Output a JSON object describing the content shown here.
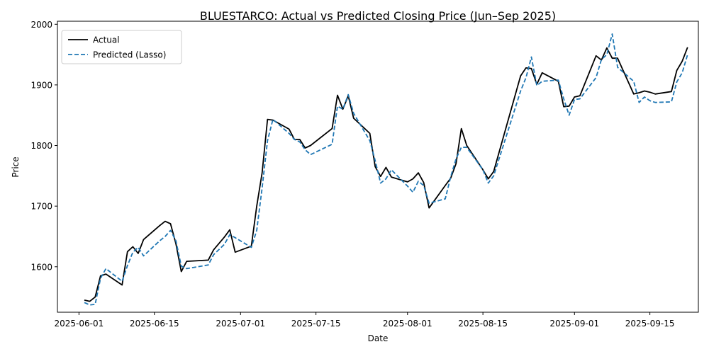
{
  "chart_data": {
    "type": "line",
    "title": "BLUESTARCO: Actual vs Predicted Closing Price (Jun–Sep 2025)",
    "xlabel": "Date",
    "ylabel": "Price",
    "xlim": [
      "2025-05-28",
      "2025-09-24"
    ],
    "ylim": [
      1525,
      2005
    ],
    "x_ticks": [
      "2025-06-01",
      "2025-06-15",
      "2025-07-01",
      "2025-07-15",
      "2025-08-01",
      "2025-08-15",
      "2025-09-01",
      "2025-09-15"
    ],
    "y_ticks": [
      1600,
      1700,
      1800,
      1900,
      2000
    ],
    "grid": false,
    "legend_position": "top-left",
    "series": [
      {
        "name": "Actual",
        "color": "#000000",
        "style": "solid",
        "points": [
          [
            "2025-06-02",
            1545
          ],
          [
            "2025-06-03",
            1543
          ],
          [
            "2025-06-04",
            1550
          ],
          [
            "2025-06-05",
            1585
          ],
          [
            "2025-06-06",
            1588
          ],
          [
            "2025-06-09",
            1570
          ],
          [
            "2025-06-10",
            1625
          ],
          [
            "2025-06-11",
            1633
          ],
          [
            "2025-06-12",
            1622
          ],
          [
            "2025-06-13",
            1645
          ],
          [
            "2025-06-16",
            1668
          ],
          [
            "2025-06-17",
            1675
          ],
          [
            "2025-06-18",
            1671
          ],
          [
            "2025-06-19",
            1638
          ],
          [
            "2025-06-20",
            1592
          ],
          [
            "2025-06-21",
            1609
          ],
          [
            "2025-06-25",
            1611
          ],
          [
            "2025-06-26",
            1628
          ],
          [
            "2025-06-28",
            1649
          ],
          [
            "2025-06-29",
            1661
          ],
          [
            "2025-06-30",
            1624
          ],
          [
            "2025-07-03",
            1634
          ],
          [
            "2025-07-04",
            1700
          ],
          [
            "2025-07-05",
            1755
          ],
          [
            "2025-07-06",
            1843
          ],
          [
            "2025-07-07",
            1842
          ],
          [
            "2025-07-10",
            1827
          ],
          [
            "2025-07-11",
            1810
          ],
          [
            "2025-07-12",
            1810
          ],
          [
            "2025-07-13",
            1796
          ],
          [
            "2025-07-14",
            1800
          ],
          [
            "2025-07-18",
            1828
          ],
          [
            "2025-07-19",
            1883
          ],
          [
            "2025-07-20",
            1860
          ],
          [
            "2025-07-21",
            1882
          ],
          [
            "2025-07-22",
            1845
          ],
          [
            "2025-07-25",
            1820
          ],
          [
            "2025-07-26",
            1765
          ],
          [
            "2025-07-27",
            1749
          ],
          [
            "2025-07-28",
            1764
          ],
          [
            "2025-07-29",
            1748
          ],
          [
            "2025-08-01",
            1740
          ],
          [
            "2025-08-02",
            1745
          ],
          [
            "2025-08-03",
            1755
          ],
          [
            "2025-08-04",
            1739
          ],
          [
            "2025-08-05",
            1697
          ],
          [
            "2025-08-08",
            1734
          ],
          [
            "2025-08-09",
            1746
          ],
          [
            "2025-08-10",
            1770
          ],
          [
            "2025-08-11",
            1828
          ],
          [
            "2025-08-12",
            1800
          ],
          [
            "2025-08-15",
            1760
          ],
          [
            "2025-08-16",
            1745
          ],
          [
            "2025-08-17",
            1757
          ],
          [
            "2025-08-22",
            1915
          ],
          [
            "2025-08-23",
            1928
          ],
          [
            "2025-08-24",
            1927
          ],
          [
            "2025-08-25",
            1901
          ],
          [
            "2025-08-26",
            1920
          ],
          [
            "2025-08-29",
            1906
          ],
          [
            "2025-08-30",
            1864
          ],
          [
            "2025-08-31",
            1865
          ],
          [
            "2025-09-01",
            1880
          ],
          [
            "2025-09-02",
            1882
          ],
          [
            "2025-09-05",
            1948
          ],
          [
            "2025-09-06",
            1941
          ],
          [
            "2025-09-07",
            1961
          ],
          [
            "2025-09-08",
            1944
          ],
          [
            "2025-09-09",
            1944
          ],
          [
            "2025-09-12",
            1885
          ],
          [
            "2025-09-13",
            1887
          ],
          [
            "2025-09-14",
            1890
          ],
          [
            "2025-09-15",
            1888
          ],
          [
            "2025-09-16",
            1885
          ],
          [
            "2025-09-19",
            1889
          ],
          [
            "2025-09-20",
            1924
          ],
          [
            "2025-09-21",
            1939
          ],
          [
            "2025-09-22",
            1962
          ]
        ]
      },
      {
        "name": "Predicted (Lasso)",
        "color": "#1f77b4",
        "style": "dashed",
        "points": [
          [
            "2025-06-02",
            1541
          ],
          [
            "2025-06-03",
            1537
          ],
          [
            "2025-06-04",
            1538
          ],
          [
            "2025-06-05",
            1581
          ],
          [
            "2025-06-06",
            1597
          ],
          [
            "2025-06-09",
            1576
          ],
          [
            "2025-06-10",
            1602
          ],
          [
            "2025-06-11",
            1624
          ],
          [
            "2025-06-12",
            1632
          ],
          [
            "2025-06-13",
            1618
          ],
          [
            "2025-06-16",
            1643
          ],
          [
            "2025-06-17",
            1650
          ],
          [
            "2025-06-18",
            1660
          ],
          [
            "2025-06-19",
            1643
          ],
          [
            "2025-06-20",
            1601
          ],
          [
            "2025-06-21",
            1597
          ],
          [
            "2025-06-25",
            1603
          ],
          [
            "2025-06-26",
            1620
          ],
          [
            "2025-06-28",
            1637
          ],
          [
            "2025-06-29",
            1653
          ],
          [
            "2025-06-30",
            1648
          ],
          [
            "2025-07-03",
            1632
          ],
          [
            "2025-07-04",
            1660
          ],
          [
            "2025-07-05",
            1730
          ],
          [
            "2025-07-06",
            1808
          ],
          [
            "2025-07-07",
            1843
          ],
          [
            "2025-07-10",
            1820
          ],
          [
            "2025-07-11",
            1810
          ],
          [
            "2025-07-12",
            1806
          ],
          [
            "2025-07-13",
            1793
          ],
          [
            "2025-07-14",
            1785
          ],
          [
            "2025-07-18",
            1802
          ],
          [
            "2025-07-19",
            1865
          ],
          [
            "2025-07-20",
            1860
          ],
          [
            "2025-07-21",
            1884
          ],
          [
            "2025-07-22",
            1853
          ],
          [
            "2025-07-25",
            1808
          ],
          [
            "2025-07-26",
            1775
          ],
          [
            "2025-07-27",
            1738
          ],
          [
            "2025-07-28",
            1745
          ],
          [
            "2025-07-29",
            1760
          ],
          [
            "2025-08-01",
            1733
          ],
          [
            "2025-08-02",
            1723
          ],
          [
            "2025-08-03",
            1741
          ],
          [
            "2025-08-04",
            1734
          ],
          [
            "2025-08-05",
            1705
          ],
          [
            "2025-08-08",
            1712
          ],
          [
            "2025-08-09",
            1748
          ],
          [
            "2025-08-10",
            1778
          ],
          [
            "2025-08-11",
            1797
          ],
          [
            "2025-08-12",
            1797
          ],
          [
            "2025-08-15",
            1760
          ],
          [
            "2025-08-16",
            1738
          ],
          [
            "2025-08-17",
            1750
          ],
          [
            "2025-08-22",
            1890
          ],
          [
            "2025-08-23",
            1912
          ],
          [
            "2025-08-24",
            1946
          ],
          [
            "2025-08-25",
            1899
          ],
          [
            "2025-08-26",
            1906
          ],
          [
            "2025-08-29",
            1908
          ],
          [
            "2025-08-30",
            1877
          ],
          [
            "2025-08-31",
            1850
          ],
          [
            "2025-09-01",
            1876
          ],
          [
            "2025-09-02",
            1877
          ],
          [
            "2025-09-05",
            1912
          ],
          [
            "2025-09-06",
            1942
          ],
          [
            "2025-09-07",
            1950
          ],
          [
            "2025-09-08",
            1984
          ],
          [
            "2025-09-09",
            1929
          ],
          [
            "2025-09-12",
            1906
          ],
          [
            "2025-09-13",
            1871
          ],
          [
            "2025-09-14",
            1880
          ],
          [
            "2025-09-15",
            1874
          ],
          [
            "2025-09-16",
            1871
          ],
          [
            "2025-09-19",
            1872
          ],
          [
            "2025-09-20",
            1905
          ],
          [
            "2025-09-21",
            1920
          ],
          [
            "2025-09-22",
            1950
          ]
        ]
      }
    ]
  }
}
